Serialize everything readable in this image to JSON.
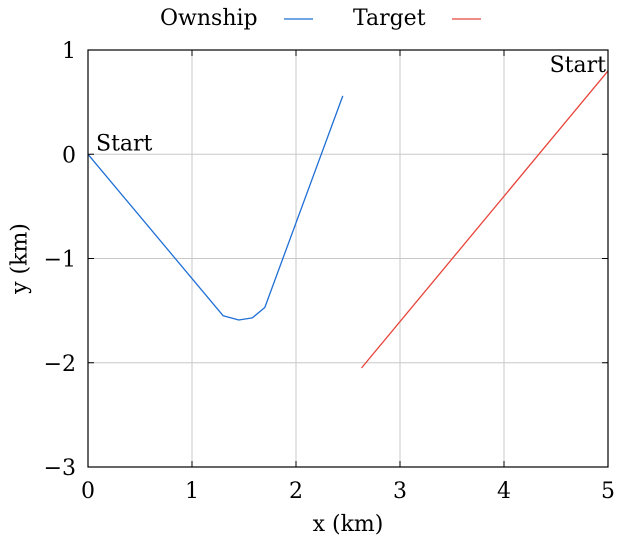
{
  "chart_data": {
    "type": "line",
    "xlabel": "x (km)",
    "ylabel": "y (km)",
    "xlim": [
      0,
      5
    ],
    "ylim": [
      -3,
      1
    ],
    "xticks": [
      0,
      1,
      2,
      3,
      4,
      5
    ],
    "xtick_labels": [
      "0",
      "1",
      "2",
      "3",
      "4",
      "5"
    ],
    "yticks": [
      -3,
      -2,
      -1,
      0,
      1
    ],
    "ytick_labels": [
      "−3",
      "−2",
      "−1",
      "0",
      "1"
    ],
    "grid": true,
    "legend_position": "top-center, outside plot",
    "series": [
      {
        "name": "Ownship",
        "color": "#1f6fd6",
        "x": [
          0,
          1.3,
          1.45,
          1.58,
          1.7,
          2.45
        ],
        "y": [
          0,
          -1.55,
          -1.59,
          -1.57,
          -1.47,
          0.56
        ]
      },
      {
        "name": "Target",
        "color": "#e8433a",
        "x": [
          2.63,
          5.0
        ],
        "y": [
          -2.05,
          0.8
        ]
      }
    ],
    "annotations": [
      {
        "text": "Start",
        "x": 0,
        "y": 0
      },
      {
        "text": "Start",
        "x": 5.0,
        "y": 0.8
      }
    ]
  }
}
